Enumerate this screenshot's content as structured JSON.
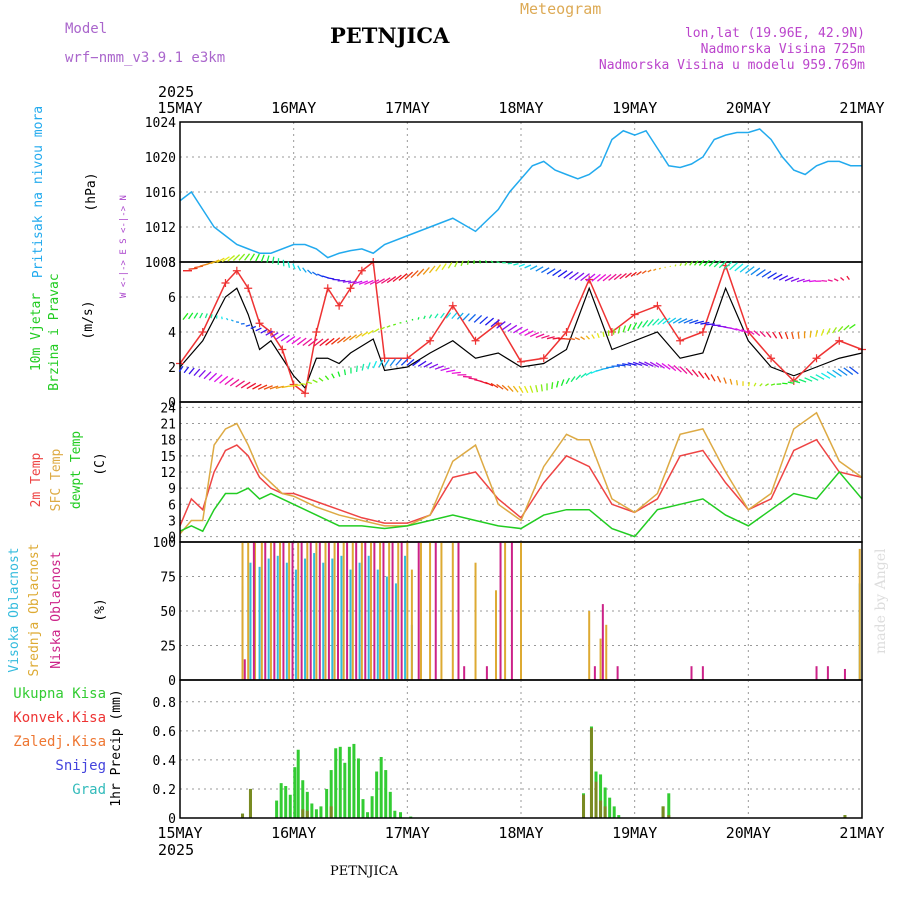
{
  "header": {
    "model_label": "Model",
    "model_name": "wrf−nmm_v3.9.1  e3km",
    "title": "PETNJICA",
    "meteogram_label": "Meteogram",
    "lonlat": "lon,lat (19.96E, 42.9N)",
    "elevation": "Nadmorska Visina 725m",
    "model_elevation": "Nadmorska Visina u modelu 959.769m",
    "credit": "made by Angel",
    "footer_station": "PETNJICA"
  },
  "time_axis": {
    "year": "2025",
    "tick_labels": [
      "15MAY",
      "16MAY",
      "17MAY",
      "18MAY",
      "19MAY",
      "20MAY",
      "21MAY"
    ],
    "x_range_days": [
      0,
      6
    ]
  },
  "colors": {
    "pressure": "#22aaee",
    "wind_speed": "#000000",
    "gust": "#ee3333",
    "temp_2m": "#ee4444",
    "temp_sfc": "#ddaa44",
    "dewpoint": "#22cc22",
    "cloud_high": "#33bbdd",
    "cloud_mid": "#ddaa33",
    "cloud_low": "#cc2288",
    "rain_total": "#33cc33",
    "rain_conv": "#ee3333",
    "rain_frozen": "#ee7733",
    "snow": "#4444dd",
    "graupel": "#33bbbb",
    "grid": "#999999"
  },
  "chart_data": [
    {
      "type": "line",
      "panel": "pressure",
      "ylabels": [
        "Pritisak na nivou mora",
        "(hPa)"
      ],
      "ylim": [
        1008,
        1024
      ],
      "yticks": [
        "1008",
        "1012",
        "1016",
        "1020",
        "1024"
      ],
      "grid": true,
      "series": [
        {
          "name": "Sea level pressure",
          "x": [
            0,
            0.1,
            0.2,
            0.3,
            0.4,
            0.5,
            0.6,
            0.7,
            0.8,
            1.0,
            1.1,
            1.2,
            1.3,
            1.4,
            1.5,
            1.6,
            1.7,
            1.8,
            2.0,
            2.2,
            2.4,
            2.6,
            2.8,
            2.9,
            3.0,
            3.1,
            3.2,
            3.3,
            3.4,
            3.5,
            3.6,
            3.7,
            3.8,
            3.9,
            4.0,
            4.1,
            4.2,
            4.3,
            4.4,
            4.5,
            4.6,
            4.7,
            4.8,
            4.9,
            5.0,
            5.1,
            5.2,
            5.3,
            5.4,
            5.5,
            5.6,
            5.7,
            5.8,
            5.9,
            6.0
          ],
          "values": [
            1015,
            1016,
            1014,
            1012,
            1011,
            1010,
            1009.5,
            1009,
            1009,
            1010,
            1010,
            1009.5,
            1008.5,
            1009,
            1009.3,
            1009.5,
            1009,
            1010,
            1011,
            1012,
            1013,
            1011.5,
            1014,
            1016,
            1017.5,
            1019,
            1019.5,
            1018.5,
            1018,
            1017.5,
            1018,
            1019,
            1022,
            1023,
            1022.5,
            1023,
            1021,
            1019,
            1018.8,
            1019.2,
            1020,
            1022,
            1022.5,
            1022.8,
            1022.8,
            1023.2,
            1022,
            1020,
            1018.5,
            1018,
            1019,
            1019.5,
            1019.5,
            1019,
            1019
          ]
        }
      ]
    },
    {
      "type": "line",
      "panel": "wind",
      "ylabels": [
        "10m Vjetar",
        "Brzina i Pravac",
        "(m/s)"
      ],
      "ylim": [
        0,
        8
      ],
      "yticks": [
        "0",
        "2",
        "4",
        "6",
        "8"
      ],
      "compass": "W <-|-> E   S <-|-> N",
      "grid": true,
      "series": [
        {
          "name": "Wind speed",
          "x": [
            0,
            0.2,
            0.4,
            0.5,
            0.6,
            0.7,
            0.8,
            0.9,
            1.0,
            1.1,
            1.2,
            1.3,
            1.4,
            1.5,
            1.6,
            1.7,
            1.8,
            2.0,
            2.2,
            2.4,
            2.6,
            2.8,
            3.0,
            3.2,
            3.4,
            3.6,
            3.8,
            4.0,
            4.2,
            4.4,
            4.6,
            4.8,
            5.0,
            5.2,
            5.4,
            5.6,
            5.8,
            6.0
          ],
          "values": [
            2.0,
            3.5,
            6.0,
            6.5,
            5.0,
            3.0,
            3.5,
            2.5,
            1.5,
            0.8,
            2.5,
            2.5,
            2.2,
            2.8,
            3.2,
            3.6,
            1.8,
            2.0,
            2.8,
            3.5,
            2.5,
            2.8,
            2.0,
            2.2,
            3.0,
            6.5,
            3.0,
            3.5,
            4.0,
            2.5,
            2.8,
            6.5,
            3.5,
            2.0,
            1.5,
            2.0,
            2.5,
            2.8
          ]
        },
        {
          "name": "Gust",
          "x": [
            0,
            0.2,
            0.4,
            0.5,
            0.6,
            0.7,
            0.8,
            0.9,
            1.0,
            1.1,
            1.2,
            1.3,
            1.4,
            1.5,
            1.6,
            1.7,
            1.8,
            2.0,
            2.2,
            2.4,
            2.6,
            2.8,
            3.0,
            3.2,
            3.4,
            3.6,
            3.8,
            4.0,
            4.2,
            4.4,
            4.6,
            4.8,
            5.0,
            5.2,
            5.4,
            5.6,
            5.8,
            6.0
          ],
          "values": [
            2.2,
            4.0,
            6.8,
            7.5,
            6.5,
            4.5,
            4.0,
            3.0,
            1.0,
            0.5,
            4.0,
            6.5,
            5.5,
            6.5,
            7.5,
            8.0,
            2.5,
            2.5,
            3.5,
            5.5,
            3.5,
            4.5,
            2.3,
            2.5,
            4.0,
            7.0,
            4.0,
            5.0,
            5.5,
            3.5,
            4.0,
            7.8,
            4.0,
            2.5,
            1.2,
            2.5,
            3.5,
            3.0
          ]
        }
      ]
    },
    {
      "type": "line",
      "panel": "temperature",
      "ylabels": [
        "2m Temp",
        "SFC Temp",
        "dewpt Temp",
        "(C)"
      ],
      "ylim": [
        -1,
        25
      ],
      "yticks": [
        "0",
        "3",
        "6",
        "9",
        "12",
        "15",
        "18",
        "21",
        "24"
      ],
      "grid": true,
      "series": [
        {
          "name": "2m Temp",
          "x": [
            0,
            0.1,
            0.2,
            0.3,
            0.4,
            0.5,
            0.6,
            0.7,
            0.8,
            0.9,
            1.0,
            1.2,
            1.4,
            1.6,
            1.8,
            2.0,
            2.2,
            2.4,
            2.6,
            2.8,
            3.0,
            3.2,
            3.4,
            3.6,
            3.8,
            4.0,
            4.2,
            4.4,
            4.6,
            4.8,
            5.0,
            5.2,
            5.4,
            5.6,
            5.8,
            6.0
          ],
          "values": [
            2,
            7,
            5,
            12,
            16,
            17,
            15,
            11,
            9,
            8,
            8,
            6.5,
            5,
            3.5,
            2.5,
            2.5,
            4,
            11,
            12,
            7,
            3.5,
            10,
            15,
            13,
            6,
            4.5,
            7,
            15,
            16,
            10,
            5,
            7,
            16,
            18,
            12,
            11
          ]
        },
        {
          "name": "SFC Temp",
          "x": [
            0,
            0.1,
            0.2,
            0.3,
            0.4,
            0.5,
            0.6,
            0.7,
            0.8,
            0.9,
            1.0,
            1.2,
            1.4,
            1.6,
            1.8,
            2.0,
            2.2,
            2.4,
            2.6,
            2.8,
            3.0,
            3.2,
            3.4,
            3.5,
            3.6,
            3.8,
            4.0,
            4.2,
            4.4,
            4.6,
            4.8,
            5.0,
            5.2,
            5.4,
            5.6,
            5.8,
            6.0
          ],
          "values": [
            0.5,
            3,
            3,
            17,
            20,
            21,
            17,
            12,
            10,
            8,
            7.5,
            5.5,
            4,
            3,
            2,
            2,
            4,
            14,
            17,
            6,
            3,
            13,
            19,
            18,
            18,
            7,
            4.5,
            8,
            19,
            20,
            12,
            5,
            8,
            20,
            23,
            14,
            11
          ]
        },
        {
          "name": "dewpt Temp",
          "x": [
            0,
            0.1,
            0.2,
            0.3,
            0.4,
            0.5,
            0.6,
            0.7,
            0.8,
            0.9,
            1.0,
            1.2,
            1.4,
            1.6,
            1.8,
            2.0,
            2.2,
            2.4,
            2.6,
            2.8,
            3.0,
            3.2,
            3.4,
            3.6,
            3.8,
            4.0,
            4.2,
            4.4,
            4.6,
            4.8,
            5.0,
            5.2,
            5.4,
            5.6,
            5.8,
            6.0
          ],
          "values": [
            1,
            2,
            1,
            5,
            8,
            8,
            9,
            7,
            8,
            7,
            6,
            4,
            2,
            2,
            1.5,
            2,
            3,
            4,
            3,
            2,
            1.5,
            4,
            5,
            5,
            1.5,
            0,
            5,
            6,
            7,
            4,
            2,
            5,
            8,
            7,
            12,
            7
          ]
        }
      ]
    },
    {
      "type": "bar",
      "panel": "cloud",
      "ylabels": [
        "Visoka Oblacnost",
        "Srednja Oblacnost",
        "Niska Oblacnost",
        "(%)"
      ],
      "ylim": [
        0,
        100
      ],
      "yticks": [
        "0",
        "25",
        "50",
        "75",
        "100"
      ],
      "grid": true,
      "series": [
        {
          "name": "Visoka Oblacnost",
          "x": [
            0.55,
            0.62,
            0.7,
            0.78,
            0.86,
            0.94,
            1.02,
            1.1,
            1.18,
            1.26,
            1.34,
            1.42,
            1.5,
            1.58,
            1.66,
            1.74,
            1.82,
            1.9,
            1.98,
            2.04,
            5.98
          ],
          "values": [
            68,
            85,
            82,
            88,
            90,
            85,
            80,
            88,
            92,
            85,
            88,
            90,
            80,
            85,
            90,
            80,
            75,
            70,
            90,
            40,
            70
          ]
        },
        {
          "name": "Srednja Oblacnost",
          "x": [
            0.55,
            0.6,
            0.66,
            0.72,
            0.8,
            0.88,
            0.96,
            1.04,
            1.12,
            1.2,
            1.28,
            1.36,
            1.44,
            1.52,
            1.6,
            1.68,
            1.76,
            1.84,
            1.92,
            2.0,
            2.04,
            2.12,
            2.2,
            2.3,
            2.4,
            2.6,
            2.78,
            2.86,
            3.0,
            3.6,
            3.7,
            3.75,
            5.98
          ],
          "values": [
            100,
            100,
            100,
            100,
            100,
            100,
            100,
            100,
            100,
            100,
            100,
            100,
            100,
            100,
            100,
            100,
            100,
            100,
            100,
            100,
            80,
            100,
            100,
            100,
            100,
            85,
            65,
            100,
            100,
            50,
            30,
            40,
            95
          ]
        },
        {
          "name": "Niska Oblacnost",
          "x": [
            0.57,
            0.65,
            0.75,
            0.83,
            0.91,
            0.99,
            1.07,
            1.15,
            1.23,
            1.31,
            1.39,
            1.47,
            1.55,
            1.63,
            1.71,
            1.79,
            1.87,
            1.95,
            2.1,
            2.25,
            2.45,
            2.5,
            2.7,
            2.82,
            2.92,
            3.65,
            3.72,
            3.85,
            4.5,
            4.6,
            5.6,
            5.7,
            5.85
          ],
          "values": [
            15,
            100,
            100,
            100,
            100,
            100,
            100,
            100,
            100,
            100,
            100,
            100,
            100,
            100,
            100,
            100,
            100,
            100,
            100,
            100,
            100,
            10,
            10,
            100,
            100,
            10,
            55,
            10,
            10,
            10,
            10,
            10,
            8
          ]
        }
      ]
    },
    {
      "type": "bar",
      "panel": "precip",
      "ylabels": [
        "1hr Precip (mm)"
      ],
      "legend": [
        "Ukupna Kisa",
        "Konvek.Kisa",
        "Zaledj.Kisa",
        "Snijeg",
        "Grad"
      ],
      "ylim": [
        0,
        0.95
      ],
      "yticks": [
        "0",
        "0.2",
        "0.4",
        "0.6",
        "0.8"
      ],
      "grid": true,
      "series": [
        {
          "name": "Ukupna Kisa",
          "x": [
            0.55,
            0.62,
            0.85,
            0.89,
            0.93,
            0.97,
            1.01,
            1.04,
            1.08,
            1.12,
            1.16,
            1.2,
            1.24,
            1.29,
            1.33,
            1.37,
            1.41,
            1.45,
            1.49,
            1.53,
            1.57,
            1.61,
            1.65,
            1.69,
            1.73,
            1.77,
            1.81,
            1.85,
            1.89,
            1.94,
            2.03,
            3.55,
            3.62,
            3.66,
            3.7,
            3.74,
            3.78,
            3.82,
            3.86,
            4.25,
            4.3,
            5.85
          ],
          "values": [
            0.03,
            0.2,
            0.12,
            0.24,
            0.22,
            0.16,
            0.35,
            0.47,
            0.26,
            0.18,
            0.1,
            0.06,
            0.08,
            0.2,
            0.33,
            0.48,
            0.49,
            0.38,
            0.49,
            0.51,
            0.41,
            0.13,
            0.04,
            0.15,
            0.32,
            0.42,
            0.33,
            0.18,
            0.05,
            0.04,
            0.01,
            0.17,
            0.63,
            0.32,
            0.3,
            0.21,
            0.14,
            0.08,
            0.02,
            0.08,
            0.17,
            0.02
          ]
        },
        {
          "name": "Konvek.Kisa",
          "x": [
            0.55,
            0.62,
            1.08,
            1.12,
            1.33,
            3.55,
            3.62,
            3.66,
            3.7,
            3.74,
            4.25,
            4.3,
            5.85
          ],
          "values": [
            0.03,
            0.2,
            0.06,
            0.05,
            0.08,
            0.16,
            0.62,
            0.25,
            0.12,
            0.08,
            0.08,
            0.02,
            0.02
          ]
        }
      ]
    }
  ]
}
